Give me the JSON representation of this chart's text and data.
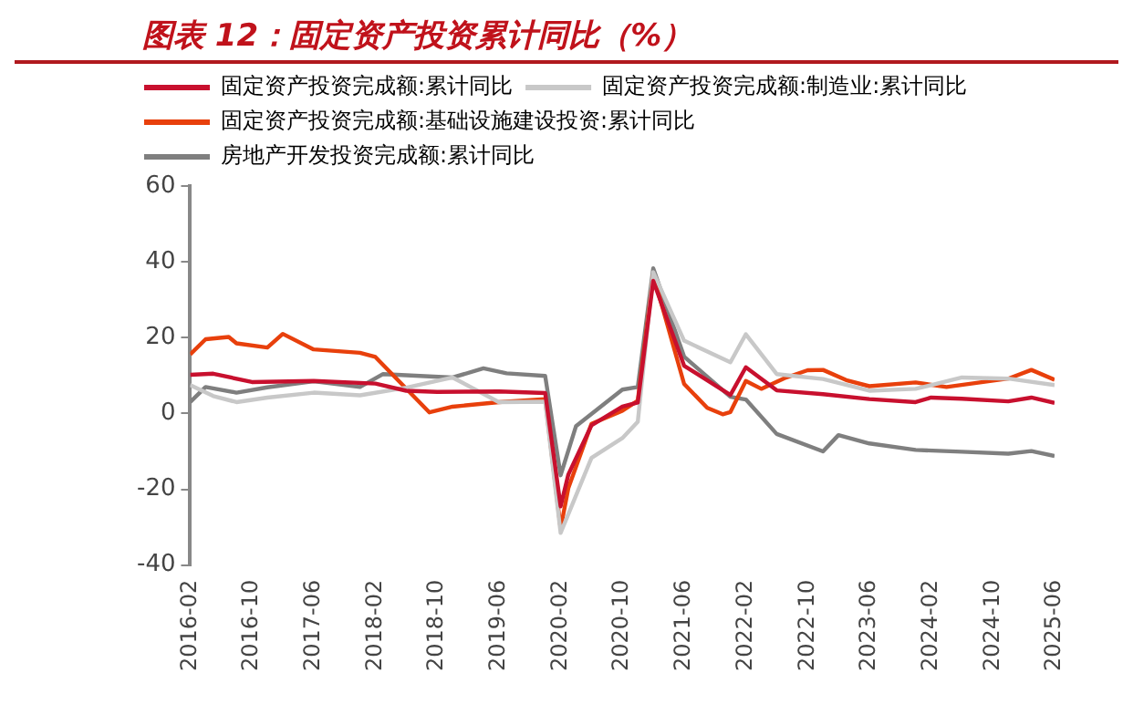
{
  "chart_data": {
    "type": "line",
    "title": "图表 12：固定资产投资累计同比（%）",
    "xlim": [
      "2016-02",
      "2025-06"
    ],
    "xticks": [
      "2016-02",
      "2016-10",
      "2017-06",
      "2018-02",
      "2018-10",
      "2019-06",
      "2020-02",
      "2020-10",
      "2021-06",
      "2022-02",
      "2022-10",
      "2023-06",
      "2024-02",
      "2024-10",
      "2025-06"
    ],
    "ylim": [
      -40,
      60
    ],
    "yticks": [
      -40,
      -20,
      0,
      20,
      40,
      60
    ],
    "grid": false,
    "legend": "top left",
    "marker": "none",
    "line_style": "solid",
    "series": [
      {
        "name": "固定资产投资完成额:累计同比",
        "color": "#c8102e",
        "x": [
          "2016-02",
          "2016-05",
          "2016-10",
          "2017-06",
          "2018-02",
          "2018-06",
          "2018-10",
          "2019-06",
          "2019-12",
          "2020-02",
          "2020-03",
          "2020-06",
          "2020-10",
          "2020-12",
          "2021-02",
          "2021-06",
          "2021-12",
          "2022-02",
          "2022-06",
          "2022-12",
          "2023-06",
          "2023-12",
          "2024-02",
          "2024-06",
          "2024-12",
          "2025-03",
          "2025-06"
        ],
        "values": [
          10.2,
          10.5,
          8.3,
          8.6,
          7.9,
          6,
          5.7,
          5.8,
          5.4,
          -24.5,
          -16.1,
          -3.1,
          1.8,
          2.9,
          35,
          12.6,
          4.9,
          12.2,
          6.1,
          5.1,
          3.8,
          3.0,
          4.2,
          3.9,
          3.2,
          4.2,
          2.8
        ]
      },
      {
        "name": "固定资产投资完成额:制造业:累计同比",
        "color": "#c8c8c8",
        "x": [
          "2016-02",
          "2016-05",
          "2016-08",
          "2016-12",
          "2017-06",
          "2017-12",
          "2018-06",
          "2018-12",
          "2019-06",
          "2019-12",
          "2020-02",
          "2020-06",
          "2020-10",
          "2020-12",
          "2021-02",
          "2021-06",
          "2021-12",
          "2022-02",
          "2022-06",
          "2022-12",
          "2023-06",
          "2023-12",
          "2024-06",
          "2024-12",
          "2025-06"
        ],
        "values": [
          7.5,
          4.6,
          3,
          4.2,
          5.5,
          4.8,
          6.8,
          9.5,
          3,
          3.1,
          -31.5,
          -11.7,
          -6.5,
          -2.2,
          37.3,
          19.2,
          13.5,
          20.9,
          10.4,
          9.1,
          6.0,
          6.5,
          9.5,
          9.2,
          7.5
        ]
      },
      {
        "name": "固定资产投资完成额:基础设施建设投资:累计同比",
        "color": "#e8400c",
        "x": [
          "2016-02",
          "2016-04",
          "2016-07",
          "2016-08",
          "2016-12",
          "2017-02",
          "2017-06",
          "2017-12",
          "2018-02",
          "2018-09",
          "2018-12",
          "2019-06",
          "2019-12",
          "2020-02",
          "2020-03",
          "2020-06",
          "2020-10",
          "2020-12",
          "2021-02",
          "2021-06",
          "2021-09",
          "2021-11",
          "2021-12",
          "2022-02",
          "2022-04",
          "2022-07",
          "2022-10",
          "2022-12",
          "2023-03",
          "2023-06",
          "2023-12",
          "2024-04",
          "2024-12",
          "2025-03",
          "2025-06"
        ],
        "values": [
          15.6,
          19.6,
          20.2,
          18.5,
          17.4,
          21.0,
          16.9,
          16,
          14.9,
          0.3,
          1.8,
          3.0,
          3.8,
          -30.3,
          -19.7,
          -2.7,
          0.7,
          3.4,
          36.6,
          7.8,
          1.5,
          -0.2,
          0.4,
          8.6,
          6.5,
          9.3,
          11.4,
          11.5,
          8.8,
          7.2,
          8.2,
          7,
          9.2,
          11.5,
          8.9
        ]
      },
      {
        "name": "房地产开发投资完成额:累计同比",
        "color": "#7f7f7f",
        "x": [
          "2016-02",
          "2016-04",
          "2016-08",
          "2016-12",
          "2017-06",
          "2017-12",
          "2018-03",
          "2018-12",
          "2019-04",
          "2019-07",
          "2019-12",
          "2020-02",
          "2020-04",
          "2020-10",
          "2020-12",
          "2021-02",
          "2021-06",
          "2021-12",
          "2022-02",
          "2022-06",
          "2022-12",
          "2023-02",
          "2023-06",
          "2023-12",
          "2024-06",
          "2024-12",
          "2025-03",
          "2025-06"
        ],
        "values": [
          3,
          7,
          5.5,
          6.9,
          8.5,
          7,
          10.4,
          9.5,
          11.9,
          10.6,
          9.9,
          -16.3,
          -3.3,
          6.3,
          7.0,
          38.3,
          15,
          4.4,
          3.7,
          -5.4,
          -10,
          -5.7,
          -7.9,
          -9.6,
          -10.1,
          -10.6,
          -9.9,
          -11.2
        ]
      }
    ]
  }
}
